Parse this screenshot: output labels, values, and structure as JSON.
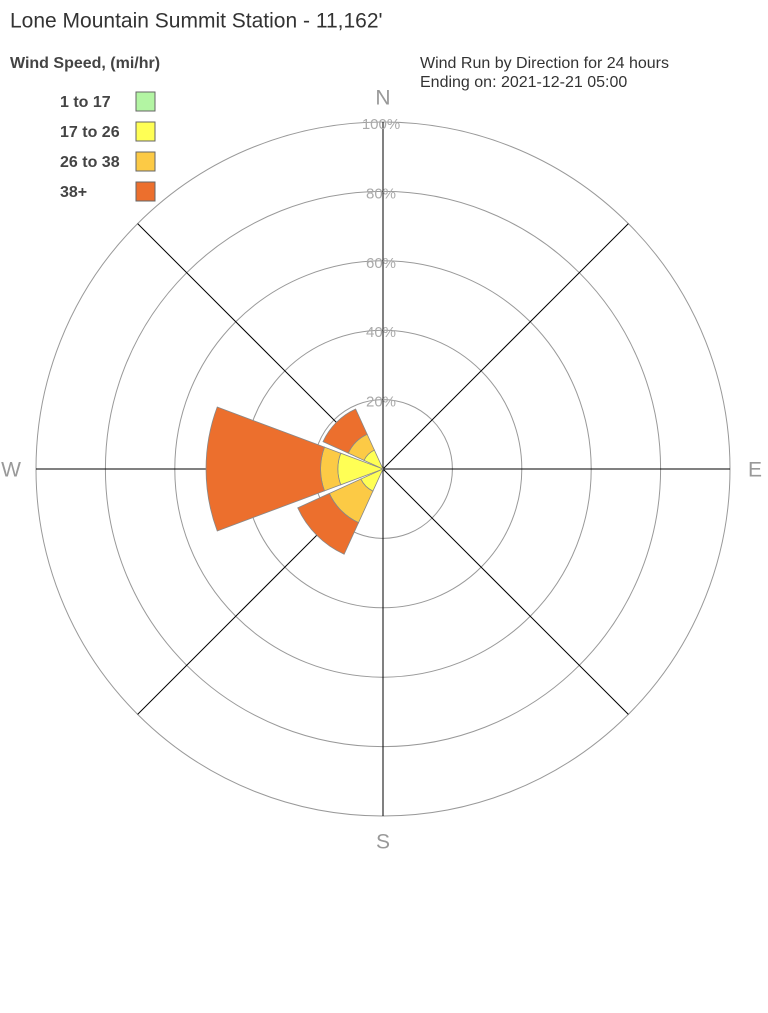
{
  "chart_data": {
    "type": "windrose",
    "title": "Lone Mountain Summit Station - 11,162'",
    "subtitle": [
      "Wind Run by Direction for 24 hours",
      "Ending on: 2021-12-21 05:00"
    ],
    "legend_title": "Wind Speed, (mi/hr)",
    "categories": [
      "N",
      null,
      "E",
      null,
      "S",
      null,
      "W",
      null
    ],
    "series": [
      {
        "name": "1 to 17",
        "color": "#b3f5a3",
        "values": [
          0,
          0,
          0,
          0,
          0,
          0,
          0,
          0
        ]
      },
      {
        "name": "17 to 26",
        "color": "#ffff55",
        "values": [
          0,
          0,
          0,
          0,
          0,
          7,
          13,
          6
        ]
      },
      {
        "name": "26 to 38",
        "color": "#fcca45",
        "values": [
          0,
          0,
          0,
          0,
          0,
          10,
          5,
          5
        ]
      },
      {
        "name": "38+",
        "color": "#ec6f2d",
        "values": [
          0,
          0,
          0,
          0,
          0,
          10,
          33,
          8
        ]
      }
    ],
    "rlim": [
      0,
      100
    ],
    "rticks": [
      {
        "value": 20,
        "label": "20%"
      },
      {
        "value": 40,
        "label": "40%"
      },
      {
        "value": 60,
        "label": "60%"
      },
      {
        "value": 80,
        "label": "80%"
      },
      {
        "value": 100,
        "label": "100%"
      }
    ],
    "legend": "top-left"
  }
}
